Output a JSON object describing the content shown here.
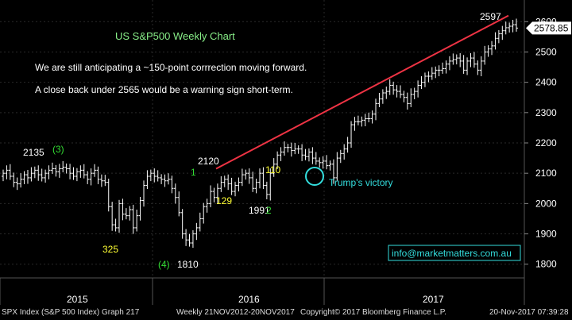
{
  "chart_data": {
    "type": "ohlc",
    "title": "US S&P500 Weekly Chart",
    "commentary": [
      "We are still anticipating a ~150-point corrrection moving forward.",
      "A close back under 2565 would be a warning sign short-term."
    ],
    "y_axis": {
      "range": [
        1760,
        2640
      ],
      "ticks": [
        1800,
        1900,
        2000,
        2100,
        2200,
        2300,
        2400,
        2500,
        2600
      ]
    },
    "x_axis": {
      "labels": [
        "2015",
        "2016",
        "2017"
      ]
    },
    "last_price": "2578.85",
    "source_watermark": "info@marketmatters.com.au",
    "annotations": [
      {
        "text": "2135",
        "color": "#ffffff"
      },
      {
        "text": "(3)",
        "color": "#33dd33"
      },
      {
        "text": "325",
        "color": "#ffff33"
      },
      {
        "text": "(4)",
        "color": "#33dd33"
      },
      {
        "text": "1810",
        "color": "#ffffff"
      },
      {
        "text": "2120",
        "color": "#ffffff"
      },
      {
        "text": "1",
        "color": "#33dd33"
      },
      {
        "text": "129",
        "color": "#ffff33"
      },
      {
        "text": "1991",
        "color": "#ffffff"
      },
      {
        "text": "2",
        "color": "#33dd33"
      },
      {
        "text": "110",
        "color": "#ffff33"
      },
      {
        "text": "Trump's victory",
        "color": "#33dddd"
      },
      {
        "text": "2597",
        "color": "#ffffff"
      }
    ],
    "trendline": {
      "from": 2115,
      "to": 2620,
      "color": "#ee3344"
    },
    "closes": [
      2100,
      2110,
      2090,
      2070,
      2065,
      2080,
      2095,
      2085,
      2100,
      2110,
      2095,
      2085,
      2100,
      2110,
      2115,
      2105,
      2115,
      2120,
      2115,
      2100,
      2090,
      2105,
      2110,
      2095,
      2080,
      2100,
      2110,
      2080,
      2075,
      2070,
      1990,
      1930,
      1920,
      2000,
      1965,
      1960,
      1980,
      1920,
      1960,
      2010,
      2060,
      2090,
      2100,
      2090,
      2085,
      2080,
      2075,
      2080,
      2050,
      2020,
      1970,
      1900,
      1880,
      1870,
      1900,
      1920,
      1950,
      1990,
      2000,
      2040,
      2020,
      2050,
      2070,
      2080,
      2065,
      2040,
      2060,
      2070,
      2095,
      2100,
      2085,
      2050,
      2070,
      2100,
      2060,
      2030,
      2100,
      2130,
      2160,
      2170,
      2185,
      2185,
      2175,
      2180,
      2180,
      2160,
      2155,
      2170,
      2150,
      2140,
      2135,
      2140,
      2125,
      2130,
      2085,
      2150,
      2165,
      2180,
      2200,
      2260,
      2270,
      2270,
      2275,
      2280,
      2280,
      2295,
      2330,
      2345,
      2365,
      2370,
      2390,
      2375,
      2370,
      2360,
      2350,
      2330,
      2360,
      2370,
      2390,
      2400,
      2420,
      2420,
      2430,
      2440,
      2440,
      2445,
      2460,
      2470,
      2475,
      2480,
      2470,
      2440,
      2470,
      2480,
      2460,
      2440,
      2470,
      2500,
      2510,
      2520,
      2545,
      2560,
      2570,
      2580,
      2585,
      2590,
      2578.85
    ],
    "bar_color": "#ffffff"
  },
  "footer": {
    "year_2015": "2015",
    "year_2016": "2016",
    "year_2017": "2017",
    "left": "SPX Index (S&P 500 Index) Graph 217",
    "mid": "Weekly 21NOV2012-20NOV2017",
    "copyright": "Copyright© 2017 Bloomberg Finance L.P.",
    "datetime": "20-Nov-2017 07:39:28"
  }
}
